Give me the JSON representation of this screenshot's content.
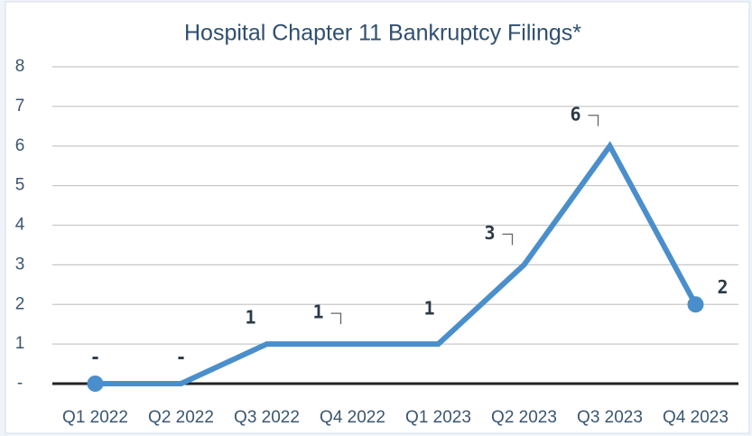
{
  "chart_data": {
    "type": "line",
    "title": "Hospital Chapter 11 Bankruptcy Filings*",
    "categories": [
      "Q1 2022",
      "Q2 2022",
      "Q3 2022",
      "Q4 2022",
      "Q1 2023",
      "Q2 2023",
      "Q3 2023",
      "Q4 2023"
    ],
    "values": [
      0,
      0,
      1,
      1,
      1,
      3,
      6,
      2
    ],
    "value_labels": [
      "-",
      "-",
      "1",
      "1",
      "1",
      "3",
      "6",
      "2"
    ],
    "color": "#4a8fcc",
    "ylim": [
      0,
      8
    ],
    "yticks": [
      {
        "value": 0,
        "label": "-"
      },
      1,
      2,
      3,
      4,
      5,
      6,
      7,
      8
    ],
    "grid": true
  }
}
